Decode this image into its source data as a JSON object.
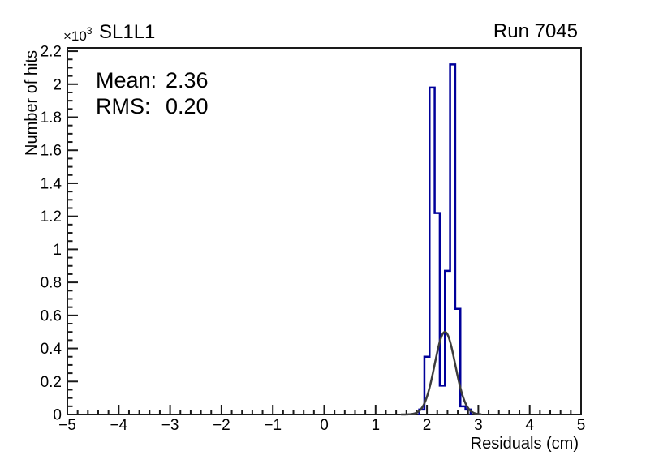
{
  "header": {
    "title": "SL1L1",
    "run_label": "Run 7045"
  },
  "axes": {
    "x_title": "Residuals (cm)",
    "y_title": "Number of hits",
    "y_multiplier_base": "×10",
    "y_multiplier_exp": "3"
  },
  "stats_box": {
    "mean_label": "Mean:",
    "mean_value": "2.36",
    "rms_label": "RMS:",
    "rms_value": "0.20"
  },
  "chart_data": {
    "type": "bar",
    "subtype": "step-histogram-with-gaussian-fit",
    "title": "SL1L1",
    "corner_annotation": "Run 7045",
    "xlabel": "Residuals (cm)",
    "ylabel": "Number of hits",
    "y_axis_multiplier": "×10³",
    "xlim": [
      -5,
      5
    ],
    "ylim": [
      0,
      2220
    ],
    "grid": false,
    "legend_position": "none",
    "x_tick_values": [
      -5,
      -4,
      -3,
      -2,
      -1,
      0,
      1,
      2,
      3,
      4,
      5
    ],
    "x_tick_labels": [
      "−5",
      "−4",
      "−3",
      "−2",
      "−1",
      "0",
      "1",
      "2",
      "3",
      "4",
      "5"
    ],
    "x_minor_tick_step": 0.2,
    "y_tick_values": [
      0,
      200,
      400,
      600,
      800,
      1000,
      1200,
      1400,
      1600,
      1800,
      2000,
      2200
    ],
    "y_tick_labels": [
      "0",
      "0.2",
      "0.4",
      "0.6",
      "0.8",
      "1",
      "1.2",
      "1.4",
      "1.6",
      "1.8",
      "2",
      "2.2"
    ],
    "y_minor_tick_step": 50,
    "histogram": {
      "series_name": "residuals histogram",
      "bin_edges": [
        1.85,
        1.95,
        2.05,
        2.15,
        2.25,
        2.35,
        2.45,
        2.55,
        2.65,
        2.75,
        2.85
      ],
      "counts": [
        30,
        350,
        1980,
        1220,
        175,
        870,
        2120,
        640,
        50,
        30
      ],
      "color": "#00009a",
      "line_width": 2.5
    },
    "fit_curve": {
      "series_name": "gaussian fit",
      "shape": "gaussian",
      "mean": 2.35,
      "sigma": 0.2,
      "amplitude": 500,
      "draw_range": [
        1.5,
        3.05
      ],
      "color": "#3c3c3c",
      "line_width": 2.5
    },
    "stats": {
      "mean": 2.36,
      "rms": 0.2
    },
    "colors": {
      "axis": "#1a1a1a",
      "text": "#000000",
      "background": "#ffffff"
    }
  }
}
